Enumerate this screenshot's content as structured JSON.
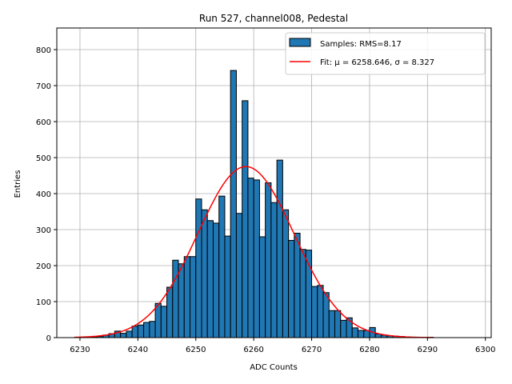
{
  "chart_data": {
    "type": "bar",
    "title": "Run 527, channel008, Pedestal",
    "xlabel": "ADC Counts",
    "ylabel": "Entries",
    "xlim": [
      6226,
      6301
    ],
    "ylim": [
      0,
      860
    ],
    "xticks": [
      6230,
      6240,
      6250,
      6260,
      6270,
      6280,
      6290,
      6300
    ],
    "yticks": [
      0,
      100,
      200,
      300,
      400,
      500,
      600,
      700,
      800
    ],
    "grid": true,
    "legend_position": "upper right",
    "colors": {
      "bars": "#1f77b4",
      "bar_edge": "#000000",
      "fit": "#ff0000",
      "grid": "#b0b0b0"
    },
    "series": [
      {
        "name": "Samples: RMS=8.17",
        "type": "histogram",
        "bin_width": 1,
        "bin_starts": [
          6230,
          6231,
          6232,
          6233,
          6234,
          6235,
          6236,
          6237,
          6238,
          6239,
          6240,
          6241,
          6242,
          6243,
          6244,
          6245,
          6246,
          6247,
          6248,
          6249,
          6250,
          6251,
          6252,
          6253,
          6254,
          6255,
          6256,
          6257,
          6258,
          6259,
          6260,
          6261,
          6262,
          6263,
          6264,
          6265,
          6266,
          6267,
          6268,
          6269,
          6270,
          6271,
          6272,
          6273,
          6274,
          6275,
          6276,
          6277,
          6278,
          6279,
          6280,
          6281,
          6282,
          6283,
          6284,
          6285,
          6286,
          6287,
          6288,
          6289,
          6290
        ],
        "values": [
          1,
          1,
          2,
          3,
          7,
          11,
          18,
          12,
          18,
          32,
          35,
          42,
          45,
          95,
          87,
          140,
          215,
          205,
          225,
          225,
          385,
          355,
          325,
          318,
          393,
          282,
          742,
          345,
          658,
          443,
          438,
          280,
          430,
          375,
          493,
          355,
          270,
          290,
          245,
          243,
          142,
          145,
          125,
          75,
          75,
          48,
          55,
          27,
          20,
          20,
          28,
          10,
          7,
          5,
          4,
          3,
          2,
          1,
          1,
          0,
          1
        ]
      },
      {
        "name": "Fit: μ = 6258.646, σ = 8.327",
        "type": "line",
        "mu": 6258.646,
        "sigma": 8.327,
        "amplitude": 475,
        "x_range": [
          6229,
          6291
        ]
      }
    ]
  }
}
